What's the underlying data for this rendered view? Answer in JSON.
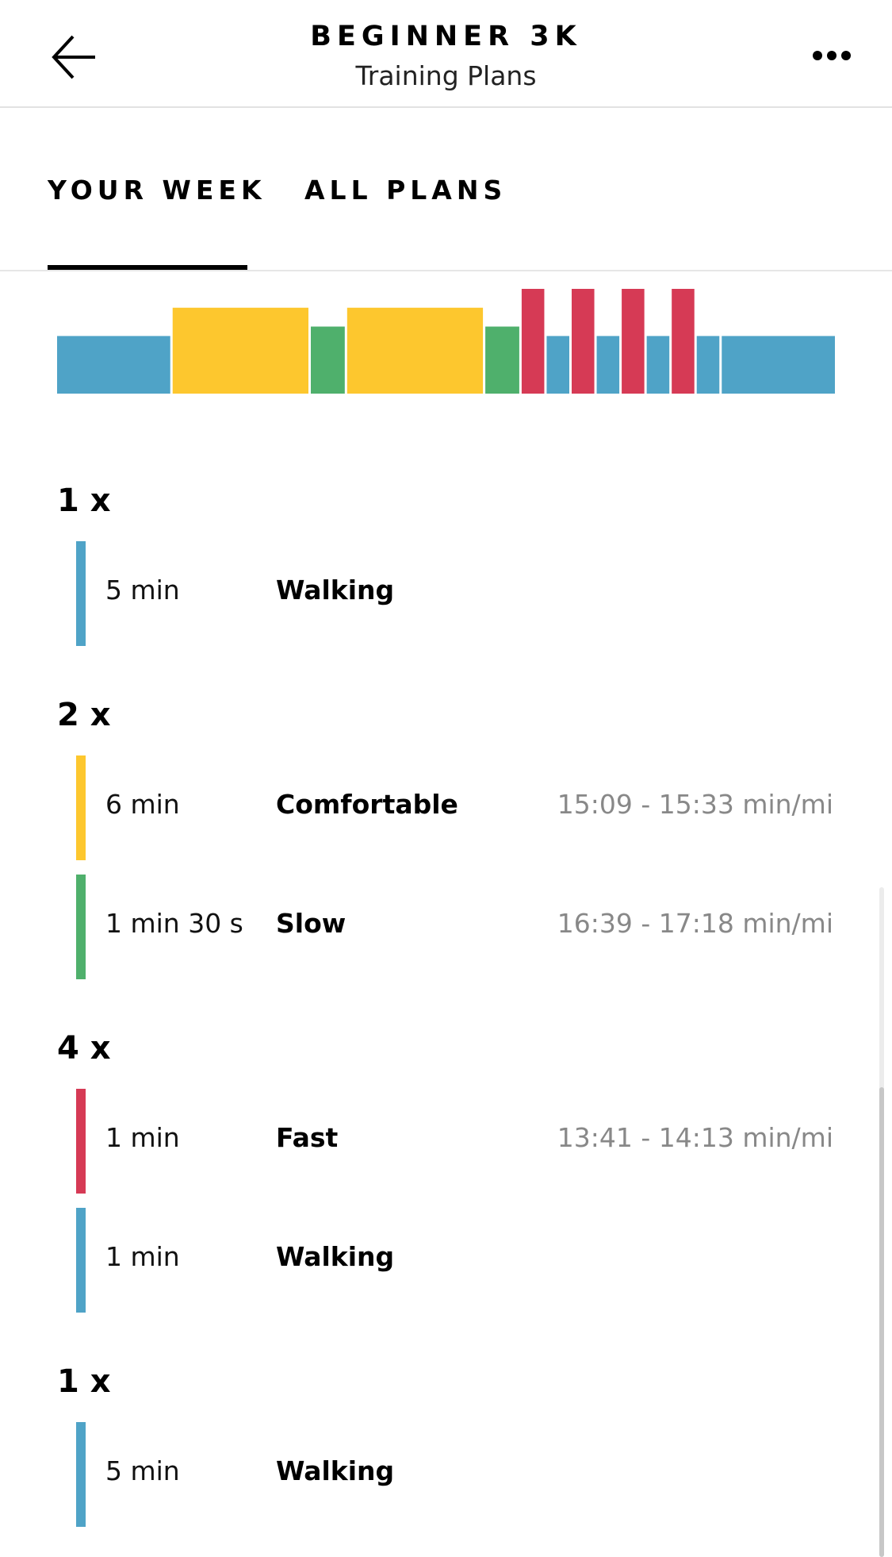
{
  "header": {
    "title": "BEGINNER 3K",
    "subtitle": "Training Plans"
  },
  "tabs": [
    {
      "label": "YOUR WEEK",
      "active": true
    },
    {
      "label": "ALL PLANS",
      "active": false
    }
  ],
  "colors": {
    "walking": "#4fa3c7",
    "comfortable": "#fdc72e",
    "slow": "#4fb06c",
    "fast": "#d63a55"
  },
  "intensity_chart": {
    "segments": [
      {
        "type": "walking",
        "minutes": 5
      },
      {
        "type": "comfortable",
        "minutes": 6
      },
      {
        "type": "slow",
        "minutes": 1.5
      },
      {
        "type": "comfortable",
        "minutes": 6
      },
      {
        "type": "slow",
        "minutes": 1.5
      },
      {
        "type": "fast",
        "minutes": 1
      },
      {
        "type": "walking",
        "minutes": 1
      },
      {
        "type": "fast",
        "minutes": 1
      },
      {
        "type": "walking",
        "minutes": 1
      },
      {
        "type": "fast",
        "minutes": 1
      },
      {
        "type": "walking",
        "minutes": 1
      },
      {
        "type": "fast",
        "minutes": 1
      },
      {
        "type": "walking",
        "minutes": 1
      },
      {
        "type": "walking",
        "minutes": 5
      }
    ],
    "intensity": {
      "walking": 0.55,
      "slow": 0.64,
      "comfortable": 0.82,
      "fast": 1.0
    }
  },
  "workout": {
    "groups": [
      {
        "repeat": "1 x",
        "steps": [
          {
            "type": "walking",
            "duration": "5 min",
            "name": "Walking",
            "pace": ""
          }
        ]
      },
      {
        "repeat": "2 x",
        "steps": [
          {
            "type": "comfortable",
            "duration": "6 min",
            "name": "Comfortable",
            "pace": "15:09 - 15:33 min/mi"
          },
          {
            "type": "slow",
            "duration": "1 min 30 s",
            "name": "Slow",
            "pace": "16:39 - 17:18 min/mi"
          }
        ]
      },
      {
        "repeat": "4 x",
        "steps": [
          {
            "type": "fast",
            "duration": "1 min",
            "name": "Fast",
            "pace": "13:41 - 14:13 min/mi"
          },
          {
            "type": "walking",
            "duration": "1 min",
            "name": "Walking",
            "pace": ""
          }
        ]
      },
      {
        "repeat": "1 x",
        "steps": [
          {
            "type": "walking",
            "duration": "5 min",
            "name": "Walking",
            "pace": ""
          }
        ]
      }
    ]
  }
}
